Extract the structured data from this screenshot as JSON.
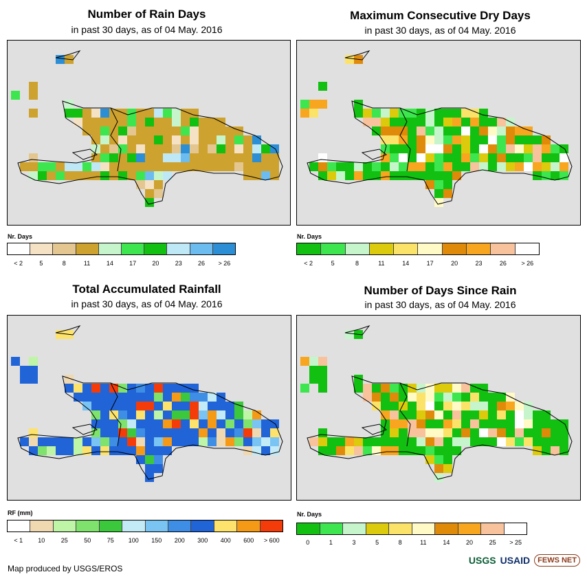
{
  "panels": [
    {
      "title": "Number of Rain Days",
      "subtitle": "in past 30 days, as of 04 May. 2016",
      "legend_label": "Nr. Days",
      "legend_colors": [
        "#ffffff",
        "#f5e1c4",
        "#e3c690",
        "#cea22e",
        "#c6f5cc",
        "#3de64e",
        "#12c012",
        "#bfe8f6",
        "#6cbcf0",
        "#2c8fd6"
      ],
      "legend_ticks": [
        "< 2",
        "5",
        "8",
        "11",
        "14",
        "17",
        "20",
        "23",
        "26",
        "> 26"
      ],
      "base": "#cea22e"
    },
    {
      "title": "Maximum Consecutive Dry Days",
      "subtitle": "in past 30 days, as of 04 May. 2016",
      "legend_label": "Nr. Days",
      "legend_colors": [
        "#12c012",
        "#3de64e",
        "#c6f5cc",
        "#dccb0c",
        "#fbe36a",
        "#fffac6",
        "#e08a0a",
        "#f8a51f",
        "#f8c29c",
        "#ffffff"
      ],
      "legend_ticks": [
        "< 2",
        "5",
        "8",
        "11",
        "14",
        "17",
        "20",
        "23",
        "26",
        "> 26"
      ],
      "base": "#12c012"
    },
    {
      "title": "Total Accumulated Rainfall",
      "subtitle": "in past 30 days, as of 04 May. 2016",
      "legend_label": "RF (mm)",
      "legend_colors": [
        "#ffffff",
        "#f0d9b0",
        "#bff5a6",
        "#7ee26c",
        "#3cc83c",
        "#c3ebf7",
        "#79c4f3",
        "#3f8ee6",
        "#2064d7",
        "#fde36b",
        "#f59a16",
        "#f43c0a"
      ],
      "legend_ticks": [
        "< 1",
        "10",
        "25",
        "50",
        "75",
        "100",
        "150",
        "200",
        "300",
        "400",
        "600",
        "> 600"
      ],
      "base": "#2064d7"
    },
    {
      "title": "Number of Days Since Rain",
      "subtitle": "in past 30 days, as of 04 May. 2016",
      "legend_label": "Nr. Days",
      "legend_colors": [
        "#12c012",
        "#3de64e",
        "#c6f5cc",
        "#dccb0c",
        "#fbe36a",
        "#fffac6",
        "#e08a0a",
        "#f8a51f",
        "#f8c29c",
        "#ffffff"
      ],
      "legend_ticks": [
        "0",
        "1",
        "3",
        "5",
        "8",
        "11",
        "14",
        "20",
        "25",
        "> 25"
      ],
      "base": "#12c012"
    }
  ],
  "footer": "Map produced by USGS/EROS",
  "logos": {
    "usgs": "USGS",
    "usaid": "USAID",
    "fews": "FEWS NET"
  }
}
